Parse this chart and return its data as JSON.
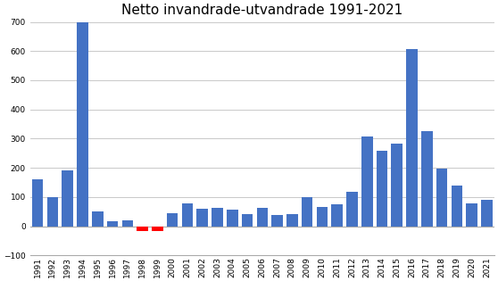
{
  "years": [
    1991,
    1992,
    1993,
    1994,
    1995,
    1996,
    1997,
    1998,
    1999,
    2000,
    2001,
    2002,
    2003,
    2004,
    2005,
    2006,
    2007,
    2008,
    2009,
    2010,
    2011,
    2012,
    2013,
    2014,
    2015,
    2016,
    2017,
    2018,
    2019,
    2020,
    2021
  ],
  "values": [
    160,
    101,
    190,
    700,
    52,
    18,
    20,
    -15,
    -15,
    45,
    80,
    60,
    62,
    57,
    42,
    62,
    38,
    43,
    101,
    67,
    75,
    117,
    307,
    260,
    283,
    608,
    325,
    197,
    140,
    80,
    90
  ],
  "bar_color_pos": "#4472C4",
  "bar_color_neg": "#FF0000",
  "title": "Netto invandrade-utvandrade 1991-2021",
  "ylim_min": -100,
  "ylim_max": 700,
  "yticks": [
    -100,
    0,
    100,
    200,
    300,
    400,
    500,
    600,
    700
  ],
  "background_color": "#FFFFFF",
  "grid_color": "#C0C0C0",
  "title_fontsize": 11,
  "tick_fontsize": 6.5
}
